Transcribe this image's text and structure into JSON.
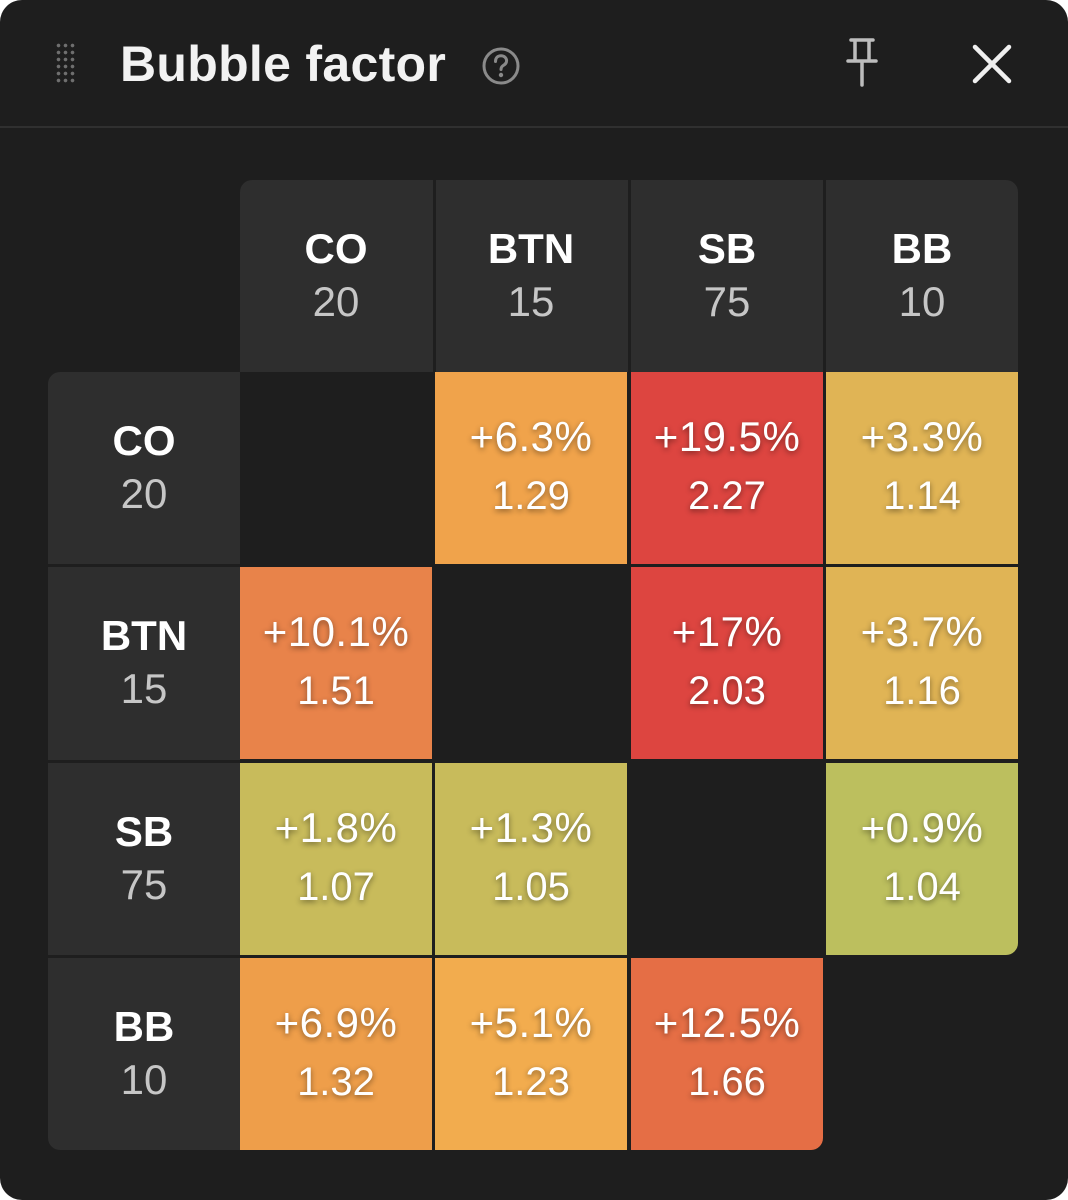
{
  "header": {
    "title": "Bubble factor",
    "help_icon": "question-circle-icon",
    "pin_icon": "pin-icon",
    "close_icon": "close-icon",
    "drag_icon": "drag-handle-icon"
  },
  "positions": [
    {
      "name": "CO",
      "stack": "20"
    },
    {
      "name": "BTN",
      "stack": "15"
    },
    {
      "name": "SB",
      "stack": "75"
    },
    {
      "name": "BB",
      "stack": "10"
    }
  ],
  "matrix": [
    [
      null,
      {
        "pct": "+6.3%",
        "factor": "1.29",
        "color": "#f0a34b"
      },
      {
        "pct": "+19.5%",
        "factor": "2.27",
        "color": "#dd4540"
      },
      {
        "pct": "+3.3%",
        "factor": "1.14",
        "color": "#e0b455"
      }
    ],
    [
      {
        "pct": "+10.1%",
        "factor": "1.51",
        "color": "#e8834a"
      },
      null,
      {
        "pct": "+17%",
        "factor": "2.03",
        "color": "#dd4540"
      },
      {
        "pct": "+3.7%",
        "factor": "1.16",
        "color": "#e0b455"
      }
    ],
    [
      {
        "pct": "+1.8%",
        "factor": "1.07",
        "color": "#c8bb5b"
      },
      {
        "pct": "+1.3%",
        "factor": "1.05",
        "color": "#c8bb5b"
      },
      null,
      {
        "pct": "+0.9%",
        "factor": "1.04",
        "color": "#bcbf5e"
      }
    ],
    [
      {
        "pct": "+6.9%",
        "factor": "1.32",
        "color": "#ee9e4a"
      },
      {
        "pct": "+5.1%",
        "factor": "1.23",
        "color": "#f2ac4e"
      },
      {
        "pct": "+12.5%",
        "factor": "1.66",
        "color": "#e56e45"
      },
      null
    ]
  ]
}
